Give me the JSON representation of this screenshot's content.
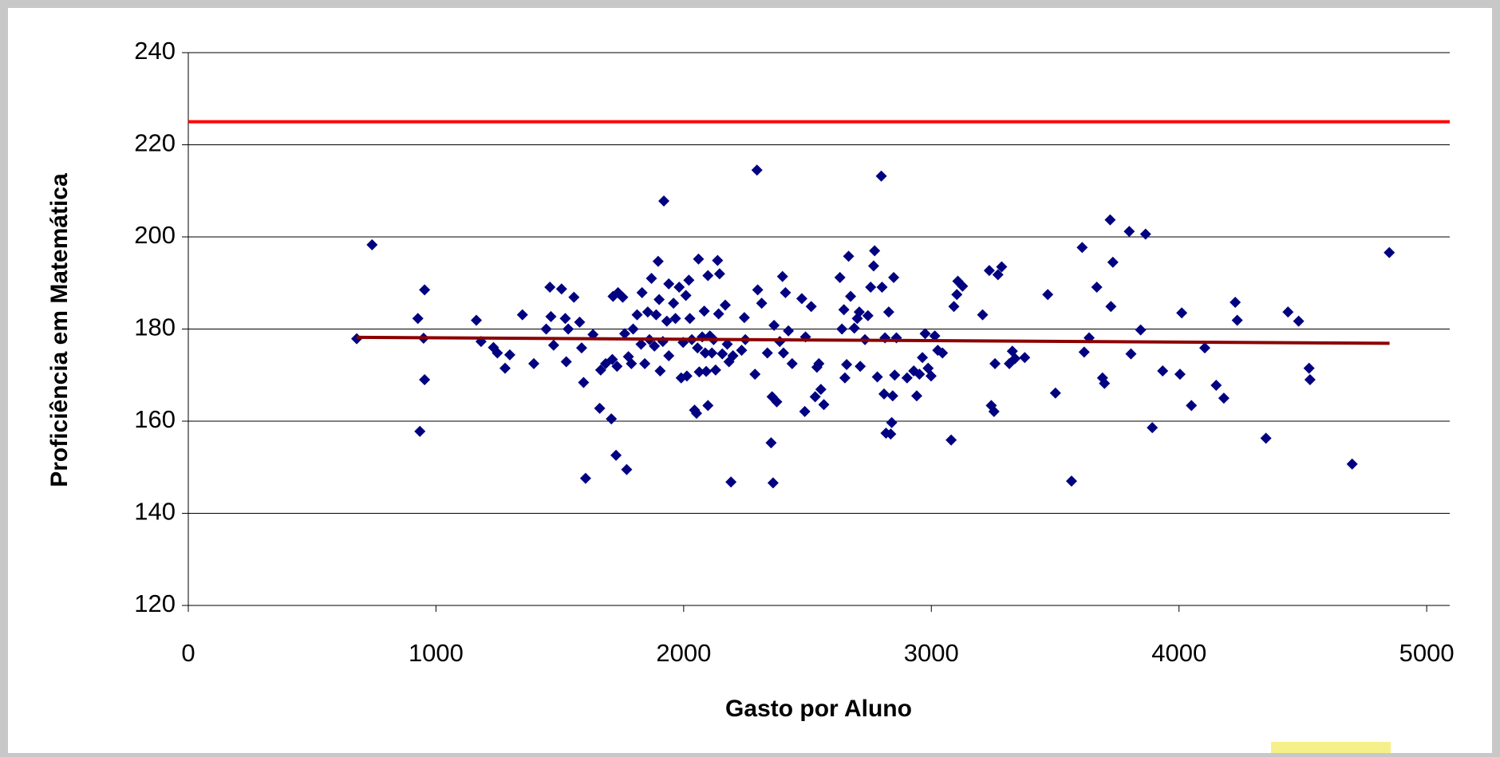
{
  "chart_data": {
    "type": "scatter",
    "x_label": "Gasto por Aluno",
    "y_label": "Proficiência em Matemática",
    "xlim": [
      0,
      5093
    ],
    "xticks": [
      0,
      1000,
      2000,
      3000,
      4000,
      5000
    ],
    "ylim": [
      120,
      240
    ],
    "yticks": [
      120,
      140,
      160,
      180,
      200,
      220,
      240
    ],
    "grid": true,
    "series": [
      {
        "type": "scatter",
        "color": "#000080",
        "x": [
          680,
          742,
          927,
          954,
          950,
          954,
          935,
          1163,
          1182,
          1232,
          1248,
          1298,
          1279,
          1349,
          1395,
          1445,
          1460,
          1464,
          1475,
          1507,
          1522,
          1534,
          1526,
          1557,
          1580,
          1588,
          1596,
          1604,
          1634,
          1665,
          1661,
          1685,
          1708,
          1712,
          1715,
          1735,
          1731,
          1727,
          1754,
          1762,
          1770,
          1777,
          1789,
          1796,
          1812,
          1828,
          1832,
          1843,
          1855,
          1862,
          1870,
          1882,
          1889,
          1901,
          1897,
          1905,
          1920,
          1916,
          1932,
          1940,
          1940,
          1959,
          1967,
          1982,
          1990,
          1998,
          2009,
          2013,
          2021,
          2025,
          2033,
          2044,
          2052,
          2056,
          2060,
          2063,
          2075,
          2083,
          2087,
          2091,
          2098,
          2098,
          2106,
          2114,
          2121,
          2129,
          2137,
          2141,
          2145,
          2156,
          2168,
          2176,
          2183,
          2191,
          2199,
          2234,
          2245,
          2249,
          2288,
          2296,
          2299,
          2315,
          2338,
          2353,
          2357,
          2361,
          2365,
          2376,
          2388,
          2399,
          2403,
          2411,
          2423,
          2438,
          2477,
          2489,
          2492,
          2515,
          2531,
          2538,
          2546,
          2554,
          2566,
          2631,
          2639,
          2647,
          2651,
          2658,
          2666,
          2674,
          2689,
          2701,
          2709,
          2713,
          2732,
          2744,
          2755,
          2767,
          2771,
          2782,
          2798,
          2801,
          2813,
          2809,
          2817,
          2828,
          2836,
          2840,
          2844,
          2848,
          2852,
          2859,
          2902,
          2929,
          2941,
          2952,
          2964,
          2975,
          2987,
          2999,
          3014,
          3026,
          3045,
          3080,
          3091,
          3103,
          3107,
          3126,
          3207,
          3234,
          3242,
          3253,
          3257,
          3269,
          3284,
          3315,
          3327,
          3338,
          3377,
          3470,
          3501,
          3566,
          3609,
          3617,
          3637,
          3668,
          3691,
          3699,
          3722,
          3725,
          3733,
          3799,
          3806,
          3845,
          3865,
          3892,
          3934,
          4004,
          4011,
          4050,
          4104,
          4150,
          4181,
          4227,
          4235,
          4351,
          4440,
          4483,
          4525,
          4529,
          4699,
          4849
        ],
        "values": [
          177.9,
          198.3,
          182.3,
          188.5,
          178,
          169,
          157.8,
          181.9,
          177.3,
          176,
          174.8,
          174.4,
          171.5,
          183.1,
          172.5,
          180,
          189.1,
          182.7,
          176.5,
          188.7,
          182.3,
          180,
          172.9,
          186.9,
          181.5,
          175.9,
          168.4,
          147.6,
          178.8,
          171.1,
          162.8,
          172.5,
          160.5,
          173.4,
          187.1,
          187.9,
          171.9,
          152.6,
          186.9,
          179,
          149.5,
          174,
          172.5,
          180,
          183.1,
          176.7,
          187.9,
          172.5,
          183.7,
          177.7,
          191,
          176.3,
          183.1,
          186.4,
          194.7,
          170.9,
          207.8,
          177.3,
          181.7,
          189.8,
          174.2,
          185.6,
          182.3,
          189.1,
          169.4,
          177.1,
          187.3,
          169.8,
          190.6,
          182.3,
          177.7,
          162.4,
          161.7,
          175.9,
          195.2,
          170.7,
          178.3,
          183.9,
          174.8,
          170.8,
          191.6,
          163.4,
          178.5,
          174.8,
          177.7,
          171.1,
          194.9,
          183.3,
          192,
          174.6,
          185.2,
          176.7,
          172.9,
          146.8,
          174.2,
          175.4,
          182.5,
          177.7,
          170.2,
          214.5,
          188.5,
          185.6,
          174.8,
          155.3,
          165.3,
          146.6,
          180.8,
          164.2,
          177.3,
          191.4,
          174.8,
          187.9,
          179.6,
          172.5,
          186.6,
          162.1,
          178.3,
          184.9,
          165.3,
          171.7,
          172.5,
          166.9,
          163.6,
          191.2,
          180,
          184.2,
          169.4,
          172.3,
          195.8,
          187.1,
          180.2,
          182.3,
          183.7,
          171.9,
          177.7,
          182.9,
          189.1,
          193.7,
          197,
          169.6,
          213.2,
          189.1,
          178.1,
          165.9,
          157.4,
          183.7,
          157.2,
          159.7,
          165.5,
          191.2,
          170,
          178.1,
          169.4,
          170.9,
          165.5,
          170.2,
          173.8,
          179,
          171.5,
          169.8,
          178.5,
          175.4,
          174.8,
          155.9,
          184.9,
          187.5,
          190.4,
          189.3,
          183.1,
          192.7,
          163.4,
          162.1,
          172.5,
          191.8,
          193.5,
          172.5,
          175.2,
          173.6,
          173.8,
          187.5,
          166.1,
          147,
          197.7,
          175,
          178.1,
          189.1,
          169.4,
          168.2,
          203.7,
          184.9,
          194.5,
          201.2,
          174.6,
          179.8,
          200.6,
          158.6,
          170.9,
          170.2,
          183.5,
          163.4,
          175.9,
          167.8,
          165,
          185.8,
          181.9,
          156.3,
          183.7,
          181.7,
          171.5,
          169,
          150.7,
          196.6
        ]
      },
      {
        "type": "line",
        "color": "#ff0000",
        "x": [
          0,
          5093
        ],
        "values": [
          225,
          225
        ]
      },
      {
        "type": "line",
        "color": "#8b0000",
        "x": [
          680,
          4850
        ],
        "values": [
          178.2,
          176.9
        ]
      }
    ]
  }
}
